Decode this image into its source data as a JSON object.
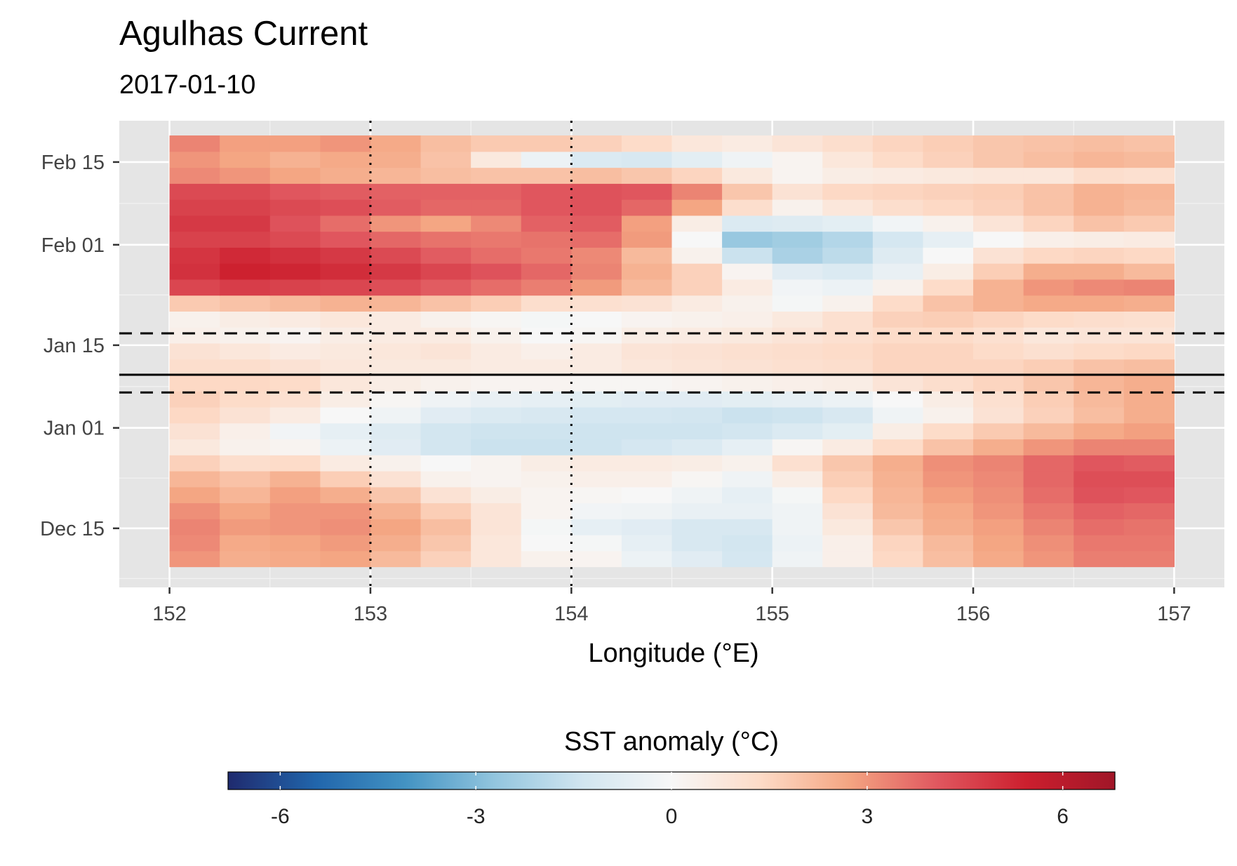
{
  "chart_data": {
    "type": "heatmap",
    "title": "Agulhas Current",
    "subtitle": "2017-01-10",
    "xlabel": "Longitude (°E)",
    "ylabel": "",
    "x_ticks": [
      152,
      153,
      154,
      155,
      156,
      157
    ],
    "y_ticks": [
      {
        "label": "Feb 15",
        "date": "2017-02-15"
      },
      {
        "label": "Feb 01",
        "date": "2017-02-01"
      },
      {
        "label": "Jan 15",
        "date": "2017-01-15"
      },
      {
        "label": "Jan 01",
        "date": "2017-01-01"
      },
      {
        "label": "Dec 15",
        "date": "2016-12-15"
      }
    ],
    "xlim": [
      151.75,
      157.25
    ],
    "ylim": [
      "2016-12-05",
      "2017-02-22"
    ],
    "grid": true,
    "x_cells": [
      152.125,
      152.375,
      152.625,
      152.875,
      153.125,
      153.375,
      153.625,
      153.875,
      154.125,
      154.375,
      154.625,
      154.875,
      155.125,
      155.375,
      155.625,
      155.875,
      156.125,
      156.375,
      156.625,
      156.875
    ],
    "date_range": [
      "2016-12-09",
      "2017-02-19"
    ],
    "z_values": [
      [
        3.0,
        2.5,
        2.6,
        2.7,
        2.2,
        1.6,
        0.8,
        0.3,
        0.2,
        -0.4,
        -0.8,
        -1.2,
        -0.3,
        0.4,
        1.4,
        2.1,
        2.6,
        3.0,
        3.4,
        3.4
      ],
      [
        3.2,
        2.6,
        2.7,
        2.9,
        2.5,
        1.9,
        0.8,
        0.0,
        -0.1,
        -0.6,
        -1.1,
        -1.3,
        -0.4,
        0.4,
        1.5,
        2.2,
        2.7,
        3.1,
        3.5,
        3.5
      ],
      [
        3.3,
        2.9,
        3.0,
        3.1,
        2.7,
        2.1,
        0.9,
        -0.1,
        -0.6,
        -0.8,
        -1.1,
        -1.1,
        -0.3,
        0.7,
        1.9,
        2.5,
        2.8,
        3.3,
        3.7,
        3.6
      ],
      [
        3.1,
        2.7,
        3.0,
        3.0,
        2.4,
        1.7,
        0.9,
        0.2,
        -0.2,
        -0.3,
        -0.5,
        -0.5,
        -0.3,
        1.0,
        2.2,
        2.6,
        3.0,
        3.5,
        3.9,
        3.8
      ],
      [
        2.7,
        2.3,
        2.8,
        2.5,
        1.9,
        1.0,
        0.5,
        0.2,
        0.1,
        0.0,
        -0.3,
        -0.6,
        -0.1,
        1.4,
        2.3,
        2.8,
        3.1,
        3.7,
        4.2,
        4.1
      ],
      [
        2.3,
        2.0,
        2.4,
        1.7,
        1.0,
        0.3,
        0.2,
        0.3,
        0.4,
        0.4,
        0.1,
        -0.3,
        0.5,
        1.7,
        2.4,
        3.0,
        3.2,
        3.8,
        4.3,
        4.3
      ],
      [
        1.6,
        1.2,
        1.3,
        0.6,
        0.3,
        0.0,
        0.2,
        0.5,
        0.6,
        0.6,
        0.5,
        0.3,
        1.1,
        1.9,
        2.5,
        3.1,
        3.3,
        3.8,
        4.1,
        4.0
      ],
      [
        0.7,
        0.3,
        0.2,
        -0.4,
        -0.8,
        -1.3,
        -1.5,
        -1.5,
        -1.4,
        -1.2,
        -1.0,
        -0.6,
        0.1,
        0.6,
        1.3,
        2.0,
        2.5,
        3.0,
        3.3,
        3.3
      ],
      [
        1.0,
        0.4,
        -0.2,
        -0.6,
        -0.9,
        -1.3,
        -1.4,
        -1.4,
        -1.4,
        -1.4,
        -1.4,
        -1.3,
        -1.0,
        -0.7,
        0.5,
        1.3,
        1.8,
        2.2,
        2.6,
        2.8
      ],
      [
        1.4,
        1.0,
        0.6,
        0.0,
        -0.3,
        -0.8,
        -1.0,
        -1.1,
        -1.2,
        -1.2,
        -1.3,
        -1.5,
        -1.4,
        -1.1,
        -0.3,
        0.3,
        1.0,
        1.6,
        2.1,
        2.5
      ],
      [
        1.6,
        1.3,
        1.1,
        0.5,
        0.1,
        -0.3,
        -0.5,
        -0.6,
        -0.7,
        -0.8,
        -0.8,
        -0.7,
        -0.6,
        -0.4,
        0.0,
        0.5,
        1.1,
        1.7,
        2.2,
        2.5
      ],
      [
        1.4,
        1.4,
        1.3,
        0.8,
        0.5,
        0.3,
        0.2,
        0.2,
        0.1,
        0.1,
        0.2,
        0.3,
        0.4,
        0.5,
        0.9,
        1.2,
        1.5,
        1.9,
        2.3,
        2.5
      ],
      [
        1.2,
        1.2,
        1.0,
        0.8,
        0.7,
        0.7,
        0.6,
        0.6,
        0.6,
        0.8,
        0.9,
        1.0,
        1.1,
        1.2,
        1.5,
        1.5,
        1.5,
        1.7,
        2.0,
        2.1
      ],
      [
        1.0,
        0.8,
        0.6,
        0.7,
        0.8,
        0.9,
        0.6,
        0.4,
        0.6,
        0.9,
        1.0,
        1.1,
        1.2,
        1.3,
        1.5,
        1.5,
        1.3,
        1.1,
        1.3,
        1.4
      ],
      [
        0.4,
        0.3,
        0.2,
        0.5,
        0.6,
        0.6,
        0.3,
        0.0,
        0.1,
        0.5,
        0.6,
        0.7,
        0.9,
        1.1,
        1.3,
        1.3,
        1.1,
        0.8,
        0.9,
        0.9
      ],
      [
        0.3,
        0.5,
        0.6,
        0.8,
        0.6,
        0.3,
        0.1,
        -0.1,
        0.0,
        0.2,
        0.3,
        0.4,
        0.7,
        1.1,
        1.6,
        1.7,
        1.5,
        1.3,
        1.2,
        1.1
      ],
      [
        1.8,
        2.0,
        2.2,
        2.4,
        2.3,
        2.0,
        1.7,
        1.2,
        1.1,
        1.0,
        0.6,
        0.3,
        -0.1,
        0.3,
        1.3,
        2.0,
        2.4,
        2.6,
        2.6,
        2.5
      ],
      [
        4.5,
        4.7,
        4.6,
        4.5,
        4.3,
        4.0,
        3.7,
        3.4,
        2.9,
        2.2,
        1.6,
        0.6,
        -0.2,
        -0.4,
        0.3,
        1.3,
        2.4,
        3.0,
        3.2,
        3.3
      ],
      [
        5.0,
        5.4,
        5.3,
        5.1,
        4.8,
        4.5,
        4.2,
        3.8,
        3.3,
        2.4,
        1.6,
        0.2,
        -0.8,
        -1.0,
        -0.5,
        0.5,
        1.7,
        2.5,
        2.5,
        2.2
      ],
      [
        4.9,
        5.2,
        5.0,
        4.8,
        4.4,
        4.0,
        3.7,
        3.5,
        3.2,
        2.2,
        0.3,
        -1.5,
        -2.2,
        -1.8,
        -0.9,
        0.0,
        1.0,
        1.4,
        1.5,
        1.4
      ],
      [
        4.6,
        4.6,
        4.4,
        4.1,
        3.8,
        3.6,
        3.5,
        3.6,
        3.7,
        2.9,
        0.0,
        -2.6,
        -2.4,
        -2.0,
        -1.2,
        -0.6,
        0.0,
        0.4,
        0.5,
        0.6
      ],
      [
        4.8,
        4.8,
        4.2,
        3.7,
        3.0,
        2.7,
        3.2,
        3.9,
        4.0,
        2.8,
        0.5,
        -1.0,
        -0.9,
        -0.7,
        -0.2,
        0.3,
        0.9,
        1.5,
        2.0,
        1.8
      ],
      [
        4.6,
        4.6,
        4.4,
        4.3,
        4.0,
        3.8,
        3.8,
        4.1,
        4.2,
        3.8,
        2.7,
        1.2,
        0.3,
        0.8,
        1.2,
        1.4,
        1.6,
        2.0,
        2.4,
        2.2
      ],
      [
        4.4,
        4.4,
        4.1,
        4.0,
        3.9,
        3.9,
        3.9,
        4.1,
        4.2,
        4.1,
        3.3,
        1.9,
        1.0,
        1.4,
        1.5,
        1.6,
        1.7,
        2.0,
        2.4,
        2.3
      ],
      [
        3.2,
        3.0,
        2.7,
        2.5,
        2.3,
        2.1,
        2.0,
        2.0,
        2.1,
        1.9,
        1.5,
        0.7,
        0.2,
        0.5,
        0.6,
        0.7,
        0.8,
        0.8,
        1.2,
        1.1
      ],
      [
        3.0,
        2.7,
        2.4,
        2.6,
        2.5,
        2.0,
        0.7,
        -0.4,
        -1.0,
        -1.1,
        -0.7,
        -0.3,
        0.2,
        0.8,
        1.3,
        1.6,
        1.9,
        2.1,
        2.3,
        2.2
      ],
      [
        3.3,
        2.8,
        2.8,
        3.0,
        2.6,
        2.1,
        1.8,
        1.8,
        1.6,
        1.3,
        0.8,
        0.6,
        0.9,
        1.2,
        1.5,
        1.7,
        1.9,
        2.0,
        2.1,
        2.0
      ]
    ],
    "reference_lines": [
      {
        "style": "dotted",
        "orientation": "vertical",
        "x": 153
      },
      {
        "style": "dotted",
        "orientation": "vertical",
        "x": 154
      },
      {
        "style": "solid",
        "orientation": "horizontal",
        "date": "2017-01-10"
      },
      {
        "style": "dashed",
        "orientation": "horizontal",
        "date": "2017-01-07"
      },
      {
        "style": "dashed",
        "orientation": "horizontal",
        "date": "2017-01-17"
      }
    ],
    "legend": {
      "title": "SST anomaly (°C)",
      "position": "bottom",
      "ticks": [
        -6,
        -3,
        0,
        3,
        6
      ],
      "range": [
        -6.8,
        6.8
      ],
      "palette": [
        "#1f2a6e",
        "#2166ac",
        "#4393c3",
        "#92c5de",
        "#d1e5f0",
        "#f7f7f7",
        "#fddbc7",
        "#f4a582",
        "#e0575f",
        "#cc1f2e",
        "#a01628"
      ]
    }
  }
}
